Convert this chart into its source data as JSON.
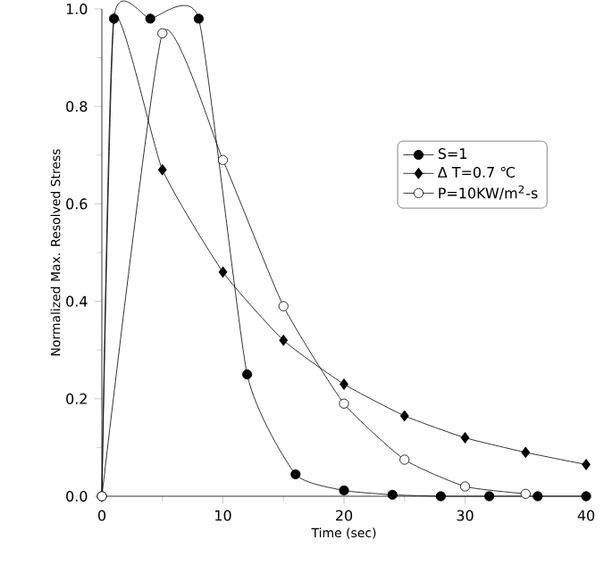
{
  "chart_data": {
    "type": "line",
    "xlabel": "Time (sec)",
    "ylabel": "Normalized Max. Resolved Stress",
    "xlim": [
      0,
      40
    ],
    "ylim": [
      0,
      1
    ],
    "xticks": [
      0,
      10,
      20,
      30,
      40
    ],
    "yticks": [
      {
        "value": 0,
        "label": "0.0"
      },
      {
        "value": 0.2,
        "label": "0.2"
      },
      {
        "value": 0.4,
        "label": "0.4"
      },
      {
        "value": 0.6,
        "label": "0.6"
      },
      {
        "value": 0.8,
        "label": "0.8"
      },
      {
        "value": 1,
        "label": "1.0"
      }
    ],
    "legend": "right",
    "grid": false,
    "series": [
      {
        "name": "S=1",
        "color": "#000000",
        "marker": "circle",
        "x": [
          0,
          1,
          4,
          8,
          12,
          16,
          20,
          24,
          28,
          32,
          36,
          40
        ],
        "values": [
          0,
          0.98,
          0.98,
          0.98,
          0.25,
          0.045,
          0.012,
          0.003,
          0,
          0,
          0,
          0
        ]
      },
      {
        "name": "Δ T=0.7 ℃",
        "color": "#000000",
        "marker": "diamond",
        "x": [
          0,
          1,
          5,
          10,
          15,
          20,
          25,
          30,
          35,
          40
        ],
        "values": [
          0,
          0.98,
          0.67,
          0.46,
          0.32,
          0.23,
          0.165,
          0.12,
          0.09,
          0.065
        ]
      },
      {
        "name": "P=10KW/m$^{2}$-s",
        "color": "#000000",
        "marker": "circle",
        "x": [
          0,
          5,
          10,
          15,
          20,
          25,
          30,
          35
        ],
        "values": [
          0,
          0.95,
          0.69,
          0.39,
          0.19,
          0.075,
          0.02,
          0.005
        ]
      }
    ]
  }
}
